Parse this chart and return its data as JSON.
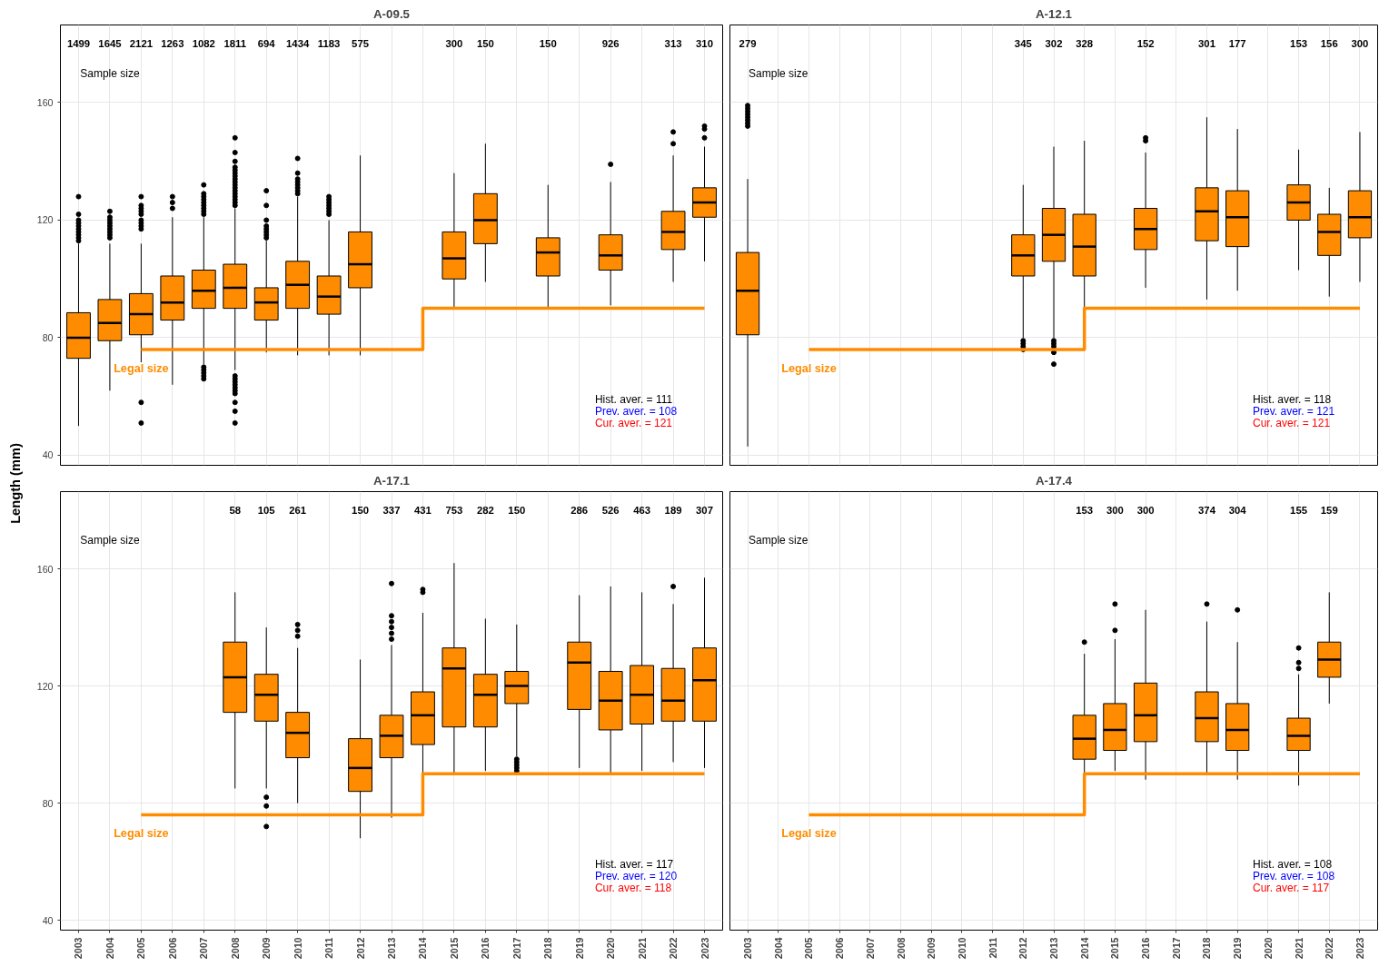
{
  "chart_data": [
    {
      "type": "box",
      "title": "A-09.5",
      "ylabel": "Length (mm)",
      "tick_labels": "y",
      "grid": true,
      "categories": [
        "2003",
        "2004",
        "2005",
        "2006",
        "2007",
        "2008",
        "2009",
        "2010",
        "2011",
        "2012",
        "2013",
        "2014",
        "2015",
        "2016",
        "2017",
        "2018",
        "2019",
        "2020",
        "2021",
        "2022",
        "2023"
      ],
      "ylim": [
        36.6,
        186.4
      ],
      "yticks": [
        40,
        80,
        120,
        160
      ],
      "series": [
        {
          "color": "#ff8c00",
          "value_labels": [
            "1499",
            "1645",
            "2121",
            "1263",
            "1082",
            "1811",
            "694",
            "1434",
            "1183",
            "575",
            null,
            null,
            "300",
            "150",
            null,
            "150",
            null,
            "926",
            null,
            "313",
            "310"
          ],
          "boxes": [
            {
              "low": 50,
              "q1": 73,
              "median": 80,
              "q3": 88.5,
              "high": 112,
              "outliers": [
                113,
                114,
                115,
                116,
                117,
                118,
                119,
                120,
                122,
                128
              ]
            },
            {
              "low": 62,
              "q1": 79,
              "median": 85,
              "q3": 93,
              "high": 112,
              "outliers": [
                114,
                115,
                116,
                117,
                118,
                119,
                120,
                121,
                123
              ]
            },
            {
              "low": 68,
              "q1": 81,
              "median": 88,
              "q3": 95,
              "high": 112,
              "outliers": [
                117,
                118,
                119,
                120,
                122,
                123,
                124,
                125,
                128,
                58,
                51
              ]
            },
            {
              "low": 64,
              "q1": 86,
              "median": 92,
              "q3": 101,
              "high": 121,
              "outliers": [
                124,
                126,
                128
              ]
            },
            {
              "low": 71,
              "q1": 90,
              "median": 96,
              "q3": 103,
              "high": 121,
              "outliers": [
                122,
                123,
                124,
                125,
                126,
                127,
                128,
                129,
                132,
                70,
                69,
                68,
                67,
                66
              ]
            },
            {
              "low": 69,
              "q1": 90,
              "median": 97,
              "q3": 105,
              "high": 124,
              "outliers": [
                125,
                126,
                127,
                128,
                129,
                130,
                131,
                132,
                133,
                134,
                135,
                136,
                137,
                138,
                140,
                143,
                148,
                67,
                66,
                65,
                64,
                63,
                62,
                61,
                58,
                55,
                51
              ]
            },
            {
              "low": 75,
              "q1": 86,
              "median": 92,
              "q3": 97,
              "high": 113,
              "outliers": [
                114,
                115,
                116,
                117,
                118,
                120,
                125,
                130
              ]
            },
            {
              "low": 74,
              "q1": 90,
              "median": 98,
              "q3": 106,
              "high": 128,
              "outliers": [
                129,
                130,
                131,
                132,
                133,
                134,
                136,
                141
              ]
            },
            {
              "low": 74,
              "q1": 88,
              "median": 94,
              "q3": 101,
              "high": 120,
              "outliers": [
                122,
                123,
                124,
                125,
                126,
                127,
                128
              ]
            },
            {
              "low": 74,
              "q1": 97,
              "median": 105,
              "q3": 116,
              "high": 142
            },
            null,
            null,
            {
              "low": 90,
              "q1": 100,
              "median": 107,
              "q3": 116,
              "high": 136
            },
            {
              "low": 99,
              "q1": 112,
              "median": 120,
              "q3": 129,
              "high": 146
            },
            null,
            {
              "low": 90,
              "q1": 101,
              "median": 109,
              "q3": 114,
              "high": 132
            },
            null,
            {
              "low": 91,
              "q1": 103,
              "median": 108,
              "q3": 115,
              "high": 133,
              "outliers": [
                139
              ]
            },
            null,
            {
              "low": 99,
              "q1": 110,
              "median": 116,
              "q3": 123,
              "high": 142,
              "outliers": [
                146,
                150
              ]
            },
            {
              "low": 106,
              "q1": 121,
              "median": 126,
              "q3": 131,
              "high": 145,
              "outliers": [
                148,
                151,
                152
              ]
            }
          ]
        },
        {
          "type": "step",
          "name": "Legal size",
          "color": "#ff8c00",
          "values": [
            null,
            null,
            76,
            76,
            76,
            76,
            76,
            76,
            76,
            76,
            76,
            90,
            90,
            90,
            90,
            90,
            90,
            90,
            90,
            90,
            90
          ]
        }
      ],
      "annotations": [
        "Sample size",
        "Hist. aver. =  111",
        "Prev. aver. =  108",
        "Cur. aver. =  121"
      ]
    },
    {
      "type": "box",
      "title": "A-12.1",
      "tick_labels": false,
      "grid": true,
      "categories": [
        "2003",
        "2004",
        "2005",
        "2006",
        "2007",
        "2008",
        "2009",
        "2010",
        "2011",
        "2012",
        "2013",
        "2014",
        "2015",
        "2016",
        "2017",
        "2018",
        "2019",
        "2020",
        "2021",
        "2022",
        "2023"
      ],
      "ylim": [
        36.6,
        186.4
      ],
      "yticks": [
        40,
        80,
        120,
        160
      ],
      "series": [
        {
          "color": "#ff8c00",
          "value_labels": [
            "279",
            null,
            null,
            null,
            null,
            null,
            null,
            null,
            null,
            "345",
            "302",
            "328",
            null,
            "152",
            null,
            "301",
            "177",
            null,
            "153",
            "156",
            "300"
          ],
          "boxes": [
            {
              "low": 43,
              "q1": 81,
              "median": 96,
              "q3": 109,
              "high": 134,
              "outliers": [
                152,
                153,
                154,
                155,
                156,
                157,
                158,
                159
              ]
            },
            null,
            null,
            null,
            null,
            null,
            null,
            null,
            null,
            {
              "low": 80,
              "q1": 101,
              "median": 108,
              "q3": 115,
              "high": 132,
              "outliers": [
                79,
                78,
                77,
                76
              ]
            },
            {
              "low": 80,
              "q1": 106,
              "median": 115,
              "q3": 124,
              "high": 145,
              "outliers": [
                79,
                78,
                77,
                75,
                71
              ]
            },
            {
              "low": 90,
              "q1": 101,
              "median": 111,
              "q3": 122,
              "high": 147
            },
            null,
            {
              "low": 97,
              "q1": 110,
              "median": 117,
              "q3": 124,
              "high": 143,
              "outliers": [
                147,
                148
              ]
            },
            null,
            {
              "low": 93,
              "q1": 113,
              "median": 123,
              "q3": 131,
              "high": 155
            },
            {
              "low": 96,
              "q1": 111,
              "median": 121,
              "q3": 130,
              "high": 151
            },
            null,
            {
              "low": 103,
              "q1": 120,
              "median": 126,
              "q3": 132,
              "high": 144
            },
            {
              "low": 94,
              "q1": 108,
              "median": 116,
              "q3": 122,
              "high": 131
            },
            {
              "low": 99,
              "q1": 114,
              "median": 121,
              "q3": 130,
              "high": 150
            }
          ]
        },
        {
          "type": "step",
          "name": "Legal size",
          "color": "#ff8c00",
          "values": [
            null,
            null,
            76,
            76,
            76,
            76,
            76,
            76,
            76,
            76,
            76,
            90,
            90,
            90,
            90,
            90,
            90,
            90,
            90,
            90,
            90
          ]
        }
      ],
      "annotations": [
        "Sample size",
        "Hist. aver. =  118",
        "Prev. aver. =  121",
        "Cur. aver. =  121"
      ]
    },
    {
      "type": "box",
      "title": "A-17.1",
      "grid": true,
      "categories": [
        "2003",
        "2004",
        "2005",
        "2006",
        "2007",
        "2008",
        "2009",
        "2010",
        "2011",
        "2012",
        "2013",
        "2014",
        "2015",
        "2016",
        "2017",
        "2018",
        "2019",
        "2020",
        "2021",
        "2022",
        "2023"
      ],
      "ylim": [
        36.6,
        186.4
      ],
      "yticks": [
        40,
        80,
        120,
        160
      ],
      "series": [
        {
          "color": "#ff8c00",
          "value_labels": [
            null,
            null,
            null,
            null,
            null,
            "58",
            "105",
            "261",
            null,
            "150",
            "337",
            "431",
            "753",
            "282",
            "150",
            null,
            "286",
            "526",
            "463",
            "189",
            "307"
          ],
          "boxes": [
            null,
            null,
            null,
            null,
            null,
            {
              "low": 85,
              "q1": 111,
              "median": 123,
              "q3": 135,
              "high": 152
            },
            {
              "low": 85,
              "q1": 108,
              "median": 117,
              "q3": 124,
              "high": 140,
              "outliers": [
                82,
                79,
                72
              ]
            },
            {
              "low": 80,
              "q1": 95.5,
              "median": 104,
              "q3": 111,
              "high": 133,
              "outliers": [
                137,
                139,
                141
              ]
            },
            null,
            {
              "low": 68,
              "q1": 84,
              "median": 92,
              "q3": 102,
              "high": 129
            },
            {
              "low": 75,
              "q1": 95.5,
              "median": 103,
              "q3": 110,
              "high": 134,
              "outliers": [
                136,
                138,
                140,
                142,
                144,
                155
              ]
            },
            {
              "low": 83,
              "q1": 100,
              "median": 110,
              "q3": 118,
              "high": 145,
              "outliers": [
                152,
                153
              ]
            },
            {
              "low": 90,
              "q1": 106,
              "median": 126,
              "q3": 133,
              "high": 162
            },
            {
              "low": 91,
              "q1": 106,
              "median": 117,
              "q3": 124,
              "high": 143
            },
            {
              "low": 96,
              "q1": 114,
              "median": 120,
              "q3": 125,
              "high": 141,
              "outliers": [
                95,
                94,
                93,
                92,
                91
              ]
            },
            null,
            {
              "low": 92,
              "q1": 112,
              "median": 128,
              "q3": 135,
              "high": 151
            },
            {
              "low": 90,
              "q1": 105,
              "median": 115,
              "q3": 125,
              "high": 154
            },
            {
              "low": 91,
              "q1": 107,
              "median": 117,
              "q3": 127,
              "high": 152
            },
            {
              "low": 94,
              "q1": 108,
              "median": 115,
              "q3": 126,
              "high": 148,
              "outliers": [
                154
              ]
            },
            {
              "low": 92,
              "q1": 108,
              "median": 122,
              "q3": 133,
              "high": 157
            }
          ]
        },
        {
          "type": "step",
          "name": "Legal size",
          "color": "#ff8c00",
          "values": [
            null,
            null,
            76,
            76,
            76,
            76,
            76,
            76,
            76,
            76,
            76,
            90,
            90,
            90,
            90,
            90,
            90,
            90,
            90,
            90,
            90
          ]
        }
      ],
      "annotations": [
        "Sample size",
        "Hist. aver. =  117",
        "Prev. aver. =  120",
        "Cur. aver. =  118"
      ]
    },
    {
      "type": "box",
      "title": "A-17.4",
      "tick_labels": "x",
      "grid": true,
      "categories": [
        "2003",
        "2004",
        "2005",
        "2006",
        "2007",
        "2008",
        "2009",
        "2010",
        "2011",
        "2012",
        "2013",
        "2014",
        "2015",
        "2016",
        "2017",
        "2018",
        "2019",
        "2020",
        "2021",
        "2022",
        "2023"
      ],
      "ylim": [
        36.6,
        186.4
      ],
      "yticks": [
        40,
        80,
        120,
        160
      ],
      "series": [
        {
          "color": "#ff8c00",
          "value_labels": [
            null,
            null,
            null,
            null,
            null,
            null,
            null,
            null,
            null,
            null,
            null,
            "153",
            "300",
            "300",
            null,
            "374",
            "304",
            null,
            "155",
            "159",
            null
          ],
          "boxes": [
            null,
            null,
            null,
            null,
            null,
            null,
            null,
            null,
            null,
            null,
            null,
            {
              "low": 81,
              "q1": 95,
              "median": 102,
              "q3": 110,
              "high": 131,
              "outliers": [
                135
              ]
            },
            {
              "low": 91,
              "q1": 98,
              "median": 105,
              "q3": 114,
              "high": 136,
              "outliers": [
                139,
                148
              ]
            },
            {
              "low": 88,
              "q1": 101,
              "median": 110,
              "q3": 121,
              "high": 146
            },
            null,
            {
              "low": 90,
              "q1": 101,
              "median": 109,
              "q3": 118,
              "high": 142,
              "outliers": [
                148
              ]
            },
            {
              "low": 88,
              "q1": 98,
              "median": 105,
              "q3": 114,
              "high": 135,
              "outliers": [
                146
              ]
            },
            null,
            {
              "low": 86,
              "q1": 98,
              "median": 103,
              "q3": 109,
              "high": 124,
              "outliers": [
                126,
                128,
                133
              ]
            },
            {
              "low": 114,
              "q1": 123,
              "median": 129,
              "q3": 135,
              "high": 152
            },
            null
          ]
        },
        {
          "type": "step",
          "name": "Legal size",
          "color": "#ff8c00",
          "values": [
            null,
            null,
            76,
            76,
            76,
            76,
            76,
            76,
            76,
            76,
            76,
            90,
            90,
            90,
            90,
            90,
            90,
            90,
            90,
            90,
            90
          ]
        }
      ],
      "annotations": [
        "Sample size",
        "Hist. aver. =  108",
        "Prev. aver. =  108",
        "Cur. aver. =  117"
      ]
    }
  ]
}
